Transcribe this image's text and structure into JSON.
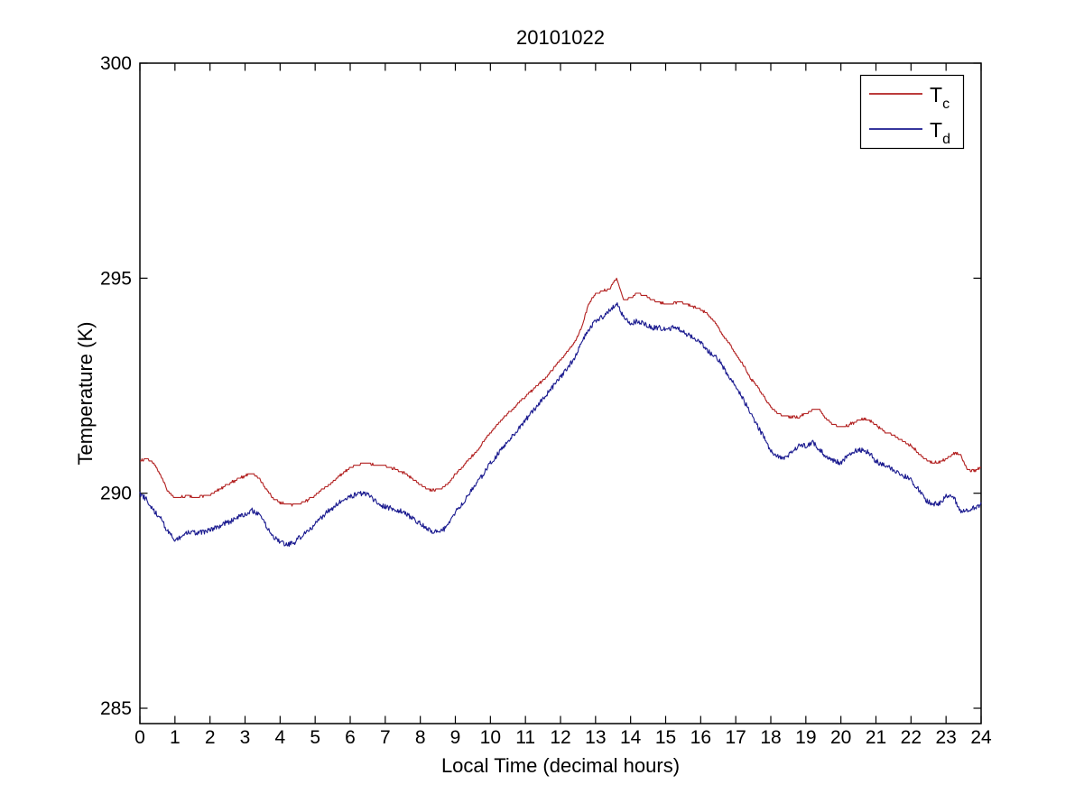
{
  "figure": {
    "title": "20101022",
    "xlabel": "Local Time (decimal hours)",
    "ylabel": "Temperature (K)"
  },
  "colors": {
    "tc_red": "#b22020",
    "td_blue": "#1a1a8f",
    "axis": "#000000",
    "background": "#ffffff"
  },
  "chart_data": {
    "type": "line",
    "title": "20101022",
    "xlabel": "Local Time (decimal hours)",
    "ylabel": "Temperature (K)",
    "xlim": [
      0,
      24
    ],
    "ylim": [
      284.64,
      300
    ],
    "xticks": [
      0,
      1,
      2,
      3,
      4,
      5,
      6,
      7,
      8,
      9,
      10,
      11,
      12,
      13,
      14,
      15,
      16,
      17,
      18,
      19,
      20,
      21,
      22,
      23,
      24
    ],
    "yticks": [
      285,
      290,
      295,
      300
    ],
    "grid": false,
    "box": true,
    "tick_direction": "in",
    "legend": {
      "position": "upper right",
      "entries": [
        {
          "label": "T_c",
          "base": "T",
          "sub": "c",
          "color": "#b22020"
        },
        {
          "label": "T_d",
          "base": "T",
          "sub": "d",
          "color": "#1a1a8f"
        }
      ]
    },
    "series": [
      {
        "name": "T_c",
        "color": "#b22020",
        "render": "quantized",
        "x0": 0,
        "dx": 0.2,
        "y": [
          290.75,
          290.8,
          290.7,
          290.4,
          290.05,
          289.9,
          289.92,
          289.95,
          289.9,
          289.93,
          289.97,
          290.05,
          290.15,
          290.25,
          290.32,
          290.4,
          290.47,
          290.35,
          290.1,
          289.88,
          289.78,
          289.74,
          289.74,
          289.76,
          289.85,
          289.95,
          290.08,
          290.2,
          290.33,
          290.47,
          290.58,
          290.66,
          290.7,
          290.68,
          290.66,
          290.63,
          290.58,
          290.52,
          290.45,
          290.32,
          290.2,
          290.1,
          290.07,
          290.12,
          290.22,
          290.45,
          290.6,
          290.8,
          290.95,
          291.2,
          291.4,
          291.6,
          291.78,
          291.92,
          292.1,
          292.25,
          292.4,
          292.55,
          292.7,
          292.9,
          293.1,
          293.3,
          293.5,
          293.85,
          294.4,
          294.65,
          294.7,
          294.75,
          295.0,
          294.5,
          294.55,
          294.65,
          294.6,
          294.5,
          294.45,
          294.4,
          294.4,
          294.45,
          294.4,
          294.32,
          294.28,
          294.15,
          294.0,
          293.7,
          293.5,
          293.25,
          293.0,
          292.7,
          292.5,
          292.25,
          292.0,
          291.85,
          291.8,
          291.77,
          291.77,
          291.85,
          291.95,
          291.93,
          291.7,
          291.58,
          291.55,
          291.58,
          291.65,
          291.72,
          291.7,
          291.6,
          291.45,
          291.38,
          291.3,
          291.2,
          291.1,
          290.95,
          290.78,
          290.72,
          290.72,
          290.8,
          290.93,
          290.92,
          290.55,
          290.52,
          290.6
        ]
      },
      {
        "name": "T_d",
        "color": "#1a1a8f",
        "render": "noisy",
        "x0": 0,
        "dx": 0.2,
        "y": [
          289.98,
          289.85,
          289.6,
          289.4,
          289.1,
          288.92,
          289.0,
          289.1,
          289.08,
          289.1,
          289.15,
          289.2,
          289.3,
          289.35,
          289.45,
          289.5,
          289.6,
          289.5,
          289.25,
          289.0,
          288.88,
          288.8,
          288.85,
          289.0,
          289.12,
          289.28,
          289.45,
          289.6,
          289.72,
          289.85,
          289.92,
          289.98,
          290.0,
          289.9,
          289.75,
          289.68,
          289.65,
          289.6,
          289.5,
          289.4,
          289.3,
          289.18,
          289.1,
          289.12,
          289.25,
          289.55,
          289.75,
          290.0,
          290.2,
          290.45,
          290.7,
          290.9,
          291.1,
          291.3,
          291.5,
          291.7,
          291.9,
          292.1,
          292.3,
          292.5,
          292.7,
          292.9,
          293.15,
          293.5,
          293.8,
          294.0,
          294.1,
          294.25,
          294.4,
          294.1,
          293.95,
          294.0,
          293.95,
          293.85,
          293.85,
          293.8,
          293.85,
          293.8,
          293.7,
          293.6,
          293.5,
          293.3,
          293.2,
          293.0,
          292.7,
          292.5,
          292.2,
          291.9,
          291.6,
          291.3,
          291.0,
          290.85,
          290.8,
          290.95,
          291.1,
          291.1,
          291.2,
          291.0,
          290.85,
          290.75,
          290.7,
          290.9,
          291.0,
          291.0,
          290.95,
          290.75,
          290.65,
          290.6,
          290.5,
          290.4,
          290.3,
          290.1,
          289.85,
          289.75,
          289.75,
          289.95,
          289.95,
          289.6,
          289.6,
          289.65,
          289.75
        ]
      }
    ]
  }
}
